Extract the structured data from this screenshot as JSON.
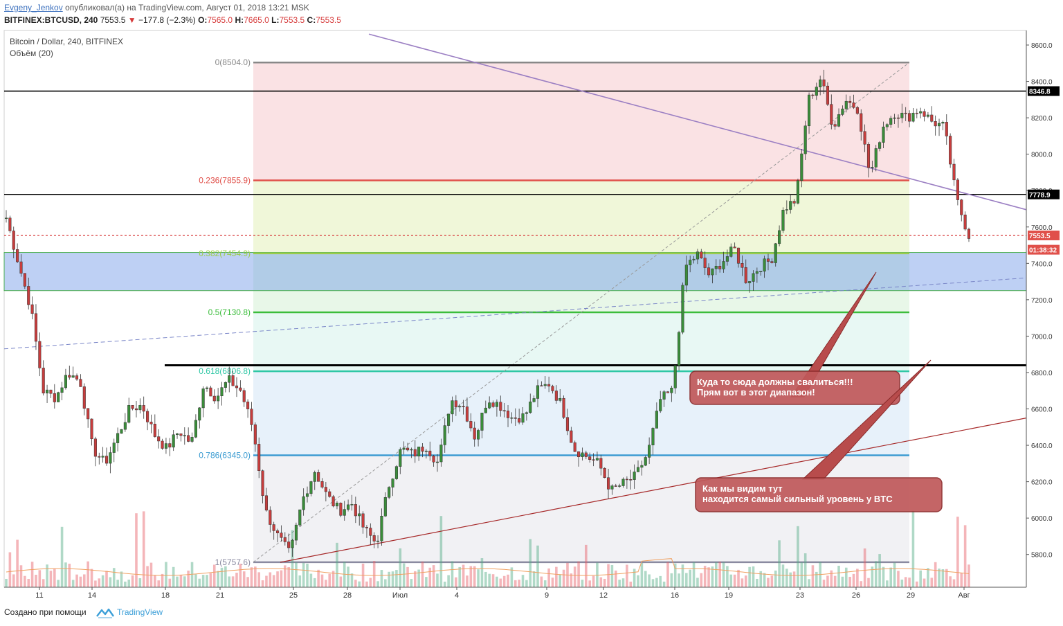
{
  "header": {
    "author": "Evgeny_Jenkov",
    "published_text": " опубликовал(а) на TradingView.com, Август 01, 2018 13:21 MSK",
    "symbol": "BITFINEX:BTCUSD, 240",
    "last": "7553.5",
    "change": "−177.8 (−2.3%)",
    "o_label": "O:",
    "o": "7565.0",
    "h_label": "H:",
    "h": "7665.0",
    "l_label": "L:",
    "l": "7553.5",
    "c_label": "C:",
    "c": "7553.5"
  },
  "chart_data": {
    "type": "candlestick",
    "legend_title": "Bitcoin / Dollar, 240, BITFINEX",
    "legend_volume": "Объём (20)",
    "ylim": [
      5620,
      8680
    ],
    "y_ticks": [
      5800,
      6000,
      6200,
      6400,
      6600,
      6800,
      7000,
      7200,
      7400,
      7600,
      7800,
      8000,
      8200,
      8400,
      8600
    ],
    "x_ticks": [
      "11",
      "14",
      "18",
      "21",
      "25",
      "28",
      "Июл",
      "4",
      "9",
      "12",
      "16",
      "19",
      "23",
      "26",
      "29",
      "Авг"
    ],
    "price_labels": [
      {
        "value": 8346.8,
        "text": "8346.8",
        "color": "#000000"
      },
      {
        "value": 7778.9,
        "text": "7778.9",
        "color": "#000000"
      },
      {
        "value": 7553.5,
        "text": "7553.5",
        "color": "#e0504a"
      },
      {
        "value": 7475,
        "text": "01:38:32",
        "color": "#e0504a"
      }
    ],
    "fibonacci": [
      {
        "ratio_label": "0(8504.0)",
        "price": 8504.0,
        "color": "#888888"
      },
      {
        "ratio_label": "0.236(7855.9)",
        "price": 7855.9,
        "color": "#e0504a"
      },
      {
        "ratio_label": "0.382(7454.9)",
        "price": 7454.9,
        "color": "#9ccc4a"
      },
      {
        "ratio_label": "0.5(7130.8)",
        "price": 7130.8,
        "color": "#3cbd3c"
      },
      {
        "ratio_label": "0.618(6806.8)",
        "price": 6806.8,
        "color": "#2fc7a5"
      },
      {
        "ratio_label": "0.786(6345.0)",
        "price": 6345.0,
        "color": "#3a9bd1"
      },
      {
        "ratio_label": "1(5757.6)",
        "price": 5757.6,
        "color": "#8a8aa0"
      }
    ],
    "horizontal_levels": [
      8346.8,
      7778.9,
      6840
    ],
    "support_zone": [
      7250,
      7460
    ],
    "current_price": 7553.5,
    "annotations": [
      {
        "text_line1": "Куда то сюда должны свалиться!!!",
        "text_line2": "Прям вот в этот диапазон!"
      },
      {
        "text_line1": "Как мы видим тут",
        "text_line2": "находится самый сильный уровень у BTC"
      }
    ],
    "series": [
      {
        "name": "close",
        "values": [
          7650,
          7400,
          7150,
          6700,
          6660,
          6800,
          6750,
          6380,
          6300,
          6450,
          6600,
          6620,
          6460,
          6380,
          6480,
          6410,
          6740,
          6660,
          6760,
          6700,
          6490,
          6040,
          5900,
          5800,
          6100,
          6260,
          6120,
          6040,
          6080,
          5940,
          5860,
          6180,
          6380,
          6350,
          6400,
          6300,
          6650,
          6620,
          6440,
          6660,
          6620,
          6550,
          6560,
          6700,
          6740,
          6620,
          6380,
          6340,
          6300,
          6150,
          6190,
          6230,
          6360,
          6650,
          6700,
          7380,
          7450,
          7330,
          7410,
          7480,
          7300,
          7380,
          7420,
          7700,
          7750,
          8300,
          8420,
          8150,
          8300,
          8250,
          7880,
          8150,
          8230,
          8200,
          8250,
          8180,
          8150,
          7750,
          7553.5
        ]
      }
    ]
  },
  "footer": {
    "created_text": "Создано при помощи",
    "brand": "TradingView"
  }
}
